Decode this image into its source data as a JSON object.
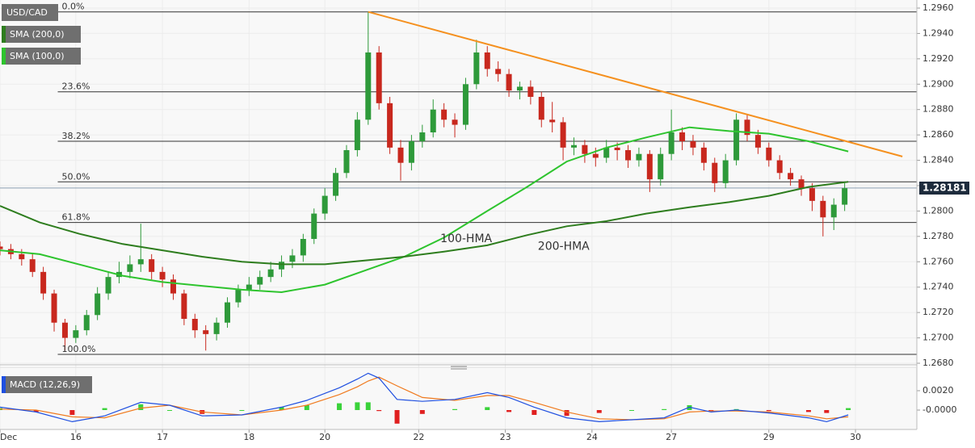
{
  "chart_data": [
    {
      "type": "candlestick",
      "symbol": "USD/CAD",
      "legend": [
        {
          "label": "SMA (200,0)",
          "color": "#2e7d1e"
        },
        {
          "label": "SMA (100,0)",
          "color": "#2ec42e"
        }
      ],
      "up_color": "#2e9a3a",
      "down_color": "#c8281e",
      "x": [
        0,
        3,
        6,
        9,
        12,
        15,
        18,
        21,
        24,
        27,
        30,
        33,
        36,
        39,
        42,
        45,
        48,
        51,
        54,
        57,
        60,
        63,
        66,
        69,
        72,
        75,
        78,
        81,
        84,
        87,
        90,
        93,
        96,
        99,
        102,
        105,
        108,
        111,
        114,
        117,
        120,
        123,
        126,
        129,
        132,
        135,
        138,
        141,
        144,
        147,
        150,
        153,
        156,
        159,
        162,
        165,
        168,
        171,
        174,
        177,
        180,
        183,
        186,
        189,
        192,
        195,
        198,
        201,
        204,
        207,
        210,
        213,
        216,
        219,
        222,
        225,
        228,
        231,
        234
      ],
      "open": [
        1.2772,
        1.277,
        1.2766,
        1.2762,
        1.2752,
        1.2735,
        1.2712,
        1.27,
        1.2706,
        1.2718,
        1.2735,
        1.2748,
        1.2752,
        1.2758,
        1.2762,
        1.2752,
        1.2746,
        1.2735,
        1.2715,
        1.2706,
        1.2703,
        1.2712,
        1.2728,
        1.2738,
        1.2742,
        1.2748,
        1.2754,
        1.276,
        1.2765,
        1.2778,
        1.2798,
        1.2812,
        1.283,
        1.2848,
        1.2872,
        1.2925,
        1.2885,
        1.285,
        1.2838,
        1.2855,
        1.2862,
        1.288,
        1.2872,
        1.2868,
        1.29,
        1.2925,
        1.2912,
        1.2908,
        1.2895,
        1.2898,
        1.289,
        1.2872,
        1.287,
        1.285,
        1.2852,
        1.2845,
        1.2842,
        1.285,
        1.2848,
        1.284,
        1.2845,
        1.2825,
        1.2845,
        1.2862,
        1.2855,
        1.285,
        1.2838,
        1.2822,
        1.284,
        1.2872,
        1.286,
        1.285,
        1.284,
        1.283,
        1.2825,
        1.2818,
        1.2808,
        1.2795,
        1.2805
      ],
      "high": [
        1.2776,
        1.2774,
        1.277,
        1.2766,
        1.2756,
        1.2738,
        1.2715,
        1.271,
        1.2722,
        1.274,
        1.2752,
        1.276,
        1.2765,
        1.279,
        1.2766,
        1.2756,
        1.275,
        1.2738,
        1.2719,
        1.271,
        1.2716,
        1.2732,
        1.2742,
        1.2748,
        1.2753,
        1.276,
        1.2765,
        1.277,
        1.2782,
        1.2802,
        1.2818,
        1.2834,
        1.2852,
        1.2878,
        1.2957,
        1.293,
        1.289,
        1.2856,
        1.286,
        1.2868,
        1.2888,
        1.2885,
        1.2877,
        1.2905,
        1.2935,
        1.293,
        1.2918,
        1.2912,
        1.2902,
        1.2903,
        1.2894,
        1.2886,
        1.2874,
        1.2858,
        1.2856,
        1.285,
        1.2856,
        1.2854,
        1.2852,
        1.285,
        1.2848,
        1.285,
        1.288,
        1.2866,
        1.286,
        1.2854,
        1.2842,
        1.2845,
        1.2877,
        1.2876,
        1.2864,
        1.2854,
        1.2844,
        1.2834,
        1.2828,
        1.2822,
        1.2812,
        1.281,
        1.2822
      ],
      "low": [
        1.2765,
        1.2762,
        1.2757,
        1.2748,
        1.273,
        1.2705,
        1.269,
        1.2696,
        1.2702,
        1.2714,
        1.273,
        1.2743,
        1.2747,
        1.2752,
        1.2746,
        1.274,
        1.273,
        1.271,
        1.27,
        1.269,
        1.2698,
        1.2708,
        1.2724,
        1.2733,
        1.2738,
        1.2744,
        1.2748,
        1.2755,
        1.276,
        1.2774,
        1.2793,
        1.2808,
        1.2826,
        1.2843,
        1.2868,
        1.288,
        1.2845,
        1.2824,
        1.2832,
        1.285,
        1.2858,
        1.2866,
        1.2858,
        1.2864,
        1.2896,
        1.2906,
        1.2902,
        1.289,
        1.2888,
        1.2884,
        1.2866,
        1.2862,
        1.284,
        1.2844,
        1.2838,
        1.2835,
        1.2838,
        1.284,
        1.2834,
        1.2835,
        1.2815,
        1.282,
        1.284,
        1.2848,
        1.2844,
        1.2832,
        1.2815,
        1.2818,
        1.2836,
        1.2855,
        1.2845,
        1.2835,
        1.2825,
        1.282,
        1.2812,
        1.28,
        1.278,
        1.2785,
        1.28
      ],
      "close": [
        1.277,
        1.2766,
        1.2762,
        1.2752,
        1.2735,
        1.2712,
        1.27,
        1.2706,
        1.2718,
        1.2735,
        1.2748,
        1.2752,
        1.2758,
        1.2762,
        1.2752,
        1.2746,
        1.2735,
        1.2715,
        1.2706,
        1.2703,
        1.2712,
        1.2728,
        1.2738,
        1.2742,
        1.2748,
        1.2754,
        1.276,
        1.2765,
        1.2778,
        1.2798,
        1.2812,
        1.283,
        1.2848,
        1.2872,
        1.2925,
        1.2885,
        1.285,
        1.2838,
        1.2855,
        1.2862,
        1.288,
        1.2872,
        1.2868,
        1.29,
        1.2925,
        1.2912,
        1.2908,
        1.2895,
        1.2898,
        1.289,
        1.2872,
        1.287,
        1.285,
        1.2852,
        1.2845,
        1.2842,
        1.285,
        1.2848,
        1.284,
        1.2845,
        1.2825,
        1.2845,
        1.2862,
        1.2855,
        1.285,
        1.2838,
        1.2822,
        1.284,
        1.2872,
        1.286,
        1.285,
        1.284,
        1.283,
        1.2825,
        1.2818,
        1.2808,
        1.2795,
        1.2805,
        1.2818
      ],
      "lines": [
        {
          "name": "100-HMA",
          "color": "#2ec42e",
          "x": [
            0,
            11,
            34,
            45,
            67,
            78,
            90,
            101,
            112,
            123,
            135,
            146,
            157,
            168,
            179,
            191,
            202,
            213,
            224,
            235
          ],
          "values": [
            1.2769,
            1.2766,
            1.2749,
            1.2744,
            1.2738,
            1.2736,
            1.2742,
            1.2753,
            1.2764,
            1.2779,
            1.28,
            1.2819,
            1.2839,
            1.285,
            1.2858,
            1.2866,
            1.2863,
            1.2861,
            1.2855,
            1.2847
          ]
        },
        {
          "name": "200-HMA",
          "color": "#2e7d1e",
          "x": [
            0,
            11,
            22,
            34,
            45,
            56,
            67,
            78,
            90,
            101,
            112,
            123,
            135,
            146,
            157,
            168,
            179,
            191,
            202,
            213,
            224,
            235
          ],
          "values": [
            1.2804,
            1.2791,
            1.2782,
            1.2774,
            1.2769,
            1.2764,
            1.276,
            1.2758,
            1.2758,
            1.2761,
            1.2764,
            1.2768,
            1.2773,
            1.2781,
            1.2788,
            1.2792,
            1.2798,
            1.2803,
            1.2807,
            1.2812,
            1.2819,
            1.2823
          ]
        }
      ],
      "fib": {
        "x_start": 16,
        "color": "#333333",
        "levels": [
          {
            "label": "0.0%",
            "value": 1.2957
          },
          {
            "label": "23.6%",
            "value": 1.2894
          },
          {
            "label": "38.2%",
            "value": 1.2855
          },
          {
            "label": "50.0%",
            "value": 1.2823
          },
          {
            "label": "61.8%",
            "value": 1.2791
          },
          {
            "label": "100.0%",
            "value": 1.2687
          }
        ]
      },
      "trendline": {
        "color": "#f5901e",
        "x": [
          102,
          250
        ],
        "values": [
          1.2957,
          1.2843
        ]
      },
      "last_price": {
        "value": 1.28181,
        "label": "1.28181"
      },
      "xlim": [
        0,
        254
      ],
      "xticks": [
        {
          "value": 0,
          "label": "Dec"
        },
        {
          "value": 21,
          "label": "16"
        },
        {
          "value": 45,
          "label": "17"
        },
        {
          "value": 69,
          "label": "18"
        },
        {
          "value": 90,
          "label": "20"
        },
        {
          "value": 116,
          "label": "22"
        },
        {
          "value": 140,
          "label": "23"
        },
        {
          "value": 164,
          "label": "24"
        },
        {
          "value": 186,
          "label": "27"
        },
        {
          "value": 213,
          "label": "29"
        },
        {
          "value": 237,
          "label": "30"
        }
      ],
      "ylim": [
        1.268,
        1.296
      ],
      "yticks": [
        {
          "value": 1.268,
          "label": "1.2680"
        },
        {
          "value": 1.27,
          "label": "1.2700"
        },
        {
          "value": 1.272,
          "label": "1.2720"
        },
        {
          "value": 1.274,
          "label": "1.2740"
        },
        {
          "value": 1.276,
          "label": "1.2760"
        },
        {
          "value": 1.278,
          "label": "1.2780"
        },
        {
          "value": 1.28,
          "label": "1.2800"
        },
        {
          "value": 1.282,
          "label": "1.2820"
        },
        {
          "value": 1.284,
          "label": "1.2840"
        },
        {
          "value": 1.286,
          "label": "1.2860"
        },
        {
          "value": 1.288,
          "label": "1.2880"
        },
        {
          "value": 1.29,
          "label": "1.2900"
        },
        {
          "value": 1.292,
          "label": "1.2920"
        },
        {
          "value": 1.294,
          "label": "1.2940"
        },
        {
          "value": 1.296,
          "label": "1.2960"
        }
      ],
      "grid": true
    },
    {
      "type": "macd",
      "label": "MACD (12,26,9)",
      "x": [
        0,
        10,
        20,
        29,
        39,
        47,
        56,
        67,
        78,
        85,
        94,
        99,
        102,
        105,
        110,
        117,
        126,
        135,
        141,
        148,
        157,
        166,
        175,
        184,
        191,
        197,
        204,
        213,
        224,
        229,
        235
      ],
      "macd": {
        "color": "#1f4fe0",
        "values": [
          0.0003,
          -0.0002,
          -0.0012,
          -0.0006,
          0.0008,
          0.0005,
          -0.0006,
          -0.0005,
          0.0003,
          0.001,
          0.0023,
          0.0032,
          0.0038,
          0.0033,
          0.0011,
          0.0009,
          0.0011,
          0.0018,
          0.0013,
          0.0003,
          -0.0008,
          -0.0012,
          -0.001,
          -0.0008,
          0.0003,
          -0.0002,
          0.0,
          -0.0003,
          -0.0008,
          -0.0012,
          -0.0005
        ]
      },
      "signal": {
        "color": "#f07a1e",
        "values": [
          0.0001,
          0.0,
          -0.0007,
          -0.0008,
          0.0002,
          0.0005,
          -0.0002,
          -0.0005,
          0.0,
          0.0005,
          0.0016,
          0.0024,
          0.003,
          0.0034,
          0.0025,
          0.0013,
          0.001,
          0.0015,
          0.0015,
          0.0008,
          -0.0002,
          -0.0009,
          -0.001,
          -0.0009,
          -0.0002,
          -0.0001,
          -0.0001,
          -0.0002,
          -0.0006,
          -0.0009,
          -0.0007
        ]
      },
      "histogram": {
        "up_color": "#3ad23a",
        "down_color": "#e02020",
        "values": [
          0.0002,
          -0.0002,
          -0.0005,
          0.0002,
          0.0006,
          0.0,
          -0.0004,
          0.0,
          0.0003,
          0.0005,
          0.0007,
          0.0008,
          0.0008,
          -0.0001,
          -0.0014,
          -0.0004,
          0.0001,
          0.0003,
          -0.0002,
          -0.0005,
          -0.0006,
          -0.0003,
          0.0,
          0.0001,
          0.0005,
          -0.0001,
          0.0001,
          -0.0001,
          -0.0002,
          -0.0003,
          0.0002
        ]
      },
      "xlim": [
        0,
        254
      ],
      "ylim": [
        -0.002,
        0.004
      ],
      "yticks": [
        {
          "value": 0,
          "label": "-0.0000"
        },
        {
          "value": 0.002,
          "label": "0.0020"
        }
      ]
    }
  ]
}
